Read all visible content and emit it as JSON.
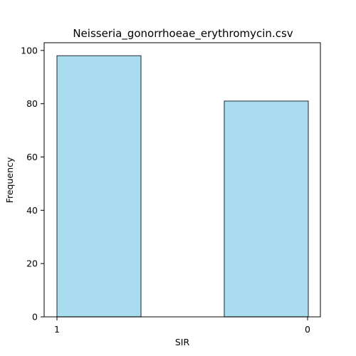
{
  "chart_data": {
    "type": "bar",
    "title": "Neisseria_gonorrhoeae_erythromycin.csv",
    "xlabel": "SIR",
    "ylabel": "Frequency",
    "categories": [
      "1",
      "0"
    ],
    "values": [
      98,
      81
    ],
    "ylim": [
      0,
      102.9
    ],
    "yticks": [
      0,
      20,
      40,
      60,
      80,
      100
    ],
    "bar_color": "#a9dcef",
    "edge_color": "#3a4a4f",
    "grid": false,
    "legend": "none"
  }
}
